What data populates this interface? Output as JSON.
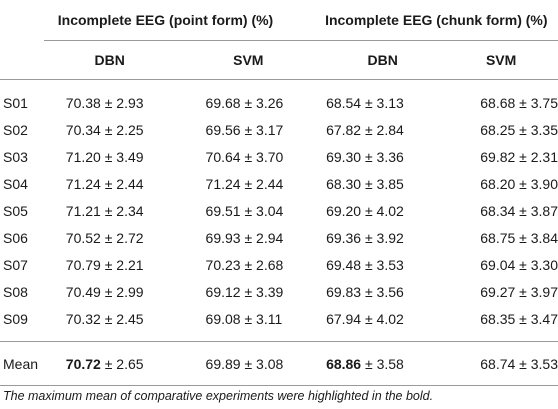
{
  "header": {
    "group1": "Incomplete EEG (point form) (%)",
    "group2": "Incomplete EEG (chunk form) (%)",
    "sub": [
      "DBN",
      "SVM",
      "DBN",
      "SVM"
    ]
  },
  "rows": [
    {
      "label": "S01",
      "v": [
        "70.38 ± 2.93",
        "69.68 ± 3.26",
        "68.54 ± 3.13",
        "68.68 ± 3.75"
      ]
    },
    {
      "label": "S02",
      "v": [
        "70.34 ± 2.25",
        "69.56 ± 3.17",
        "67.82 ± 2.84",
        "68.25 ± 3.35"
      ]
    },
    {
      "label": "S03",
      "v": [
        "71.20 ± 3.49",
        "70.64 ± 3.70",
        "69.30 ± 3.36",
        "69.82 ± 2.31"
      ]
    },
    {
      "label": "S04",
      "v": [
        "71.24 ± 2.44",
        "71.24 ± 2.44",
        "68.30 ± 3.85",
        "68.20 ± 3.90"
      ]
    },
    {
      "label": "S05",
      "v": [
        "71.21 ± 2.34",
        "69.51 ± 3.04",
        "69.20 ± 4.02",
        "68.34 ± 3.87"
      ]
    },
    {
      "label": "S06",
      "v": [
        "70.52 ± 2.72",
        "69.93 ± 2.94",
        "69.36 ± 3.92",
        "68.75 ± 3.84"
      ]
    },
    {
      "label": "S07",
      "v": [
        "70.79 ± 2.21",
        "70.23 ± 2.68",
        "69.48 ± 3.53",
        "69.04 ± 3.30"
      ]
    },
    {
      "label": "S08",
      "v": [
        "70.49 ± 2.99",
        "69.12 ± 3.39",
        "69.83 ± 3.56",
        "69.27 ± 3.97"
      ]
    },
    {
      "label": "S09",
      "v": [
        "70.32 ± 2.45",
        "69.08 ± 3.11",
        "67.94 ± 4.02",
        "68.35 ± 3.47"
      ]
    }
  ],
  "mean": {
    "label": "Mean",
    "c1_bold": "70.72",
    "c1_rest": " ± 2.65",
    "c2": "69.89 ± 3.08",
    "c3_bold": "68.86",
    "c3_rest": " ± 3.58",
    "c4": "68.74 ± 3.53"
  },
  "footnote": "The maximum mean of comparative experiments were highlighted in the bold."
}
